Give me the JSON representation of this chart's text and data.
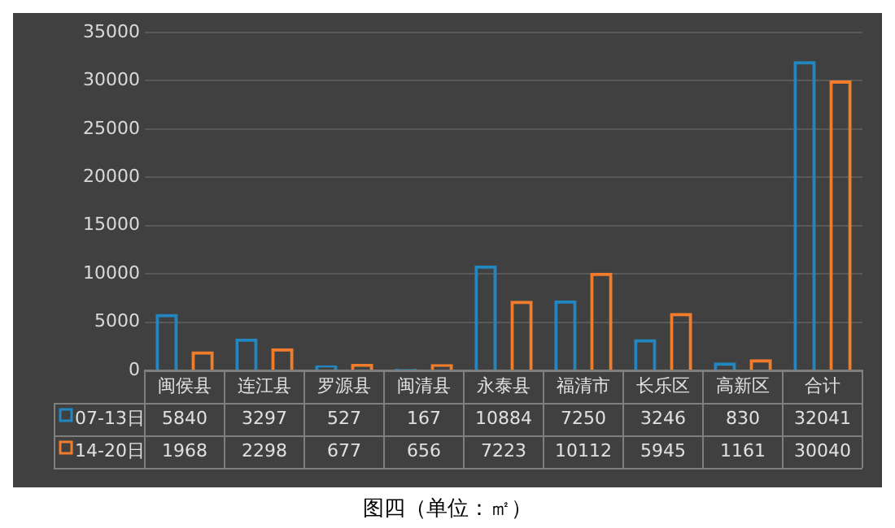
{
  "chart_data": {
    "type": "bar",
    "title": "图四（单位：㎡）",
    "categories": [
      "闽侯县",
      "连江县",
      "罗源县",
      "闽清县",
      "永泰县",
      "福清市",
      "长乐区",
      "高新区",
      "合计"
    ],
    "series": [
      {
        "name": "07-13日",
        "color": "#2287c0",
        "values": [
          5840,
          3297,
          527,
          167,
          10884,
          7250,
          3246,
          830,
          32041
        ]
      },
      {
        "name": "14-20日",
        "color": "#f07c2c",
        "values": [
          1968,
          2298,
          677,
          656,
          7223,
          10112,
          5945,
          1161,
          30040
        ]
      }
    ],
    "ylim": [
      0,
      35000
    ],
    "yticks": [
      0,
      5000,
      10000,
      15000,
      20000,
      25000,
      30000,
      35000
    ],
    "grid": "y",
    "legend": "bottom",
    "data_labels": true
  }
}
